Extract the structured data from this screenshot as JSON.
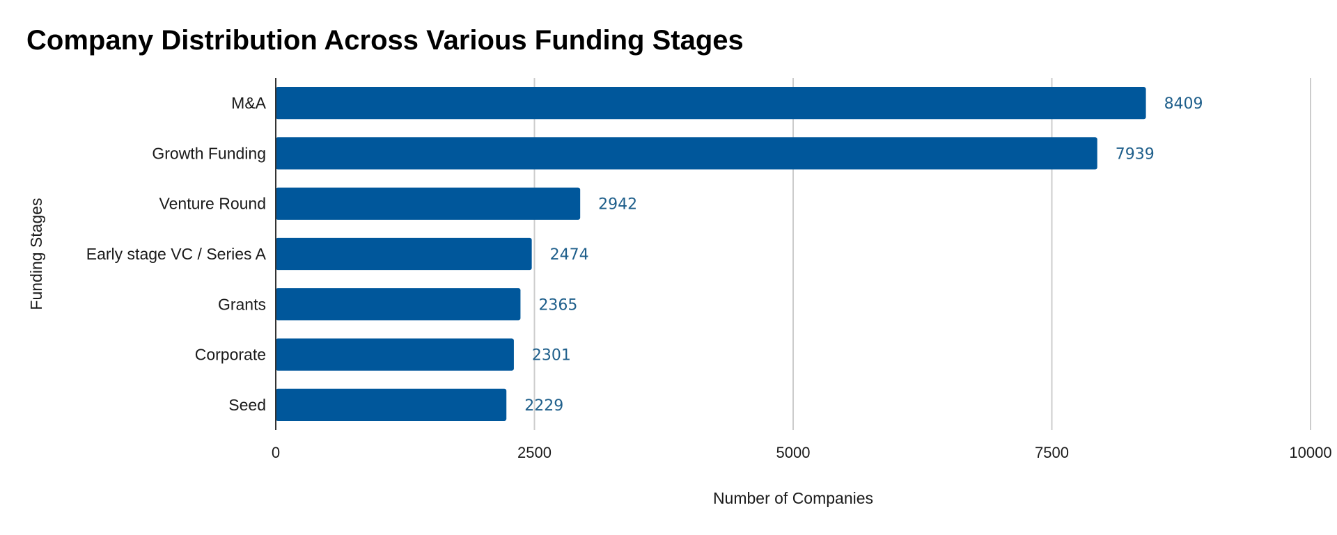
{
  "chart_data": {
    "type": "bar",
    "orientation": "horizontal",
    "title": "Company Distribution Across Various Funding Stages",
    "xlabel": "Number of Companies",
    "ylabel": "Funding Stages",
    "categories": [
      "M&A",
      "Growth Funding",
      "Venture Round",
      "Early stage VC / Series A",
      "Grants",
      "Corporate",
      "Seed"
    ],
    "values": [
      8409,
      7939,
      2942,
      2474,
      2365,
      2301,
      2229
    ],
    "xlim": [
      0,
      10000
    ],
    "xticks": [
      0,
      2500,
      5000,
      7500,
      10000
    ],
    "grid": "vertical",
    "legend": "none",
    "colors": {
      "bar": "#00579b",
      "data_label": "#1f5f8b",
      "grid": "#cccccc",
      "axis": "#333333"
    }
  }
}
